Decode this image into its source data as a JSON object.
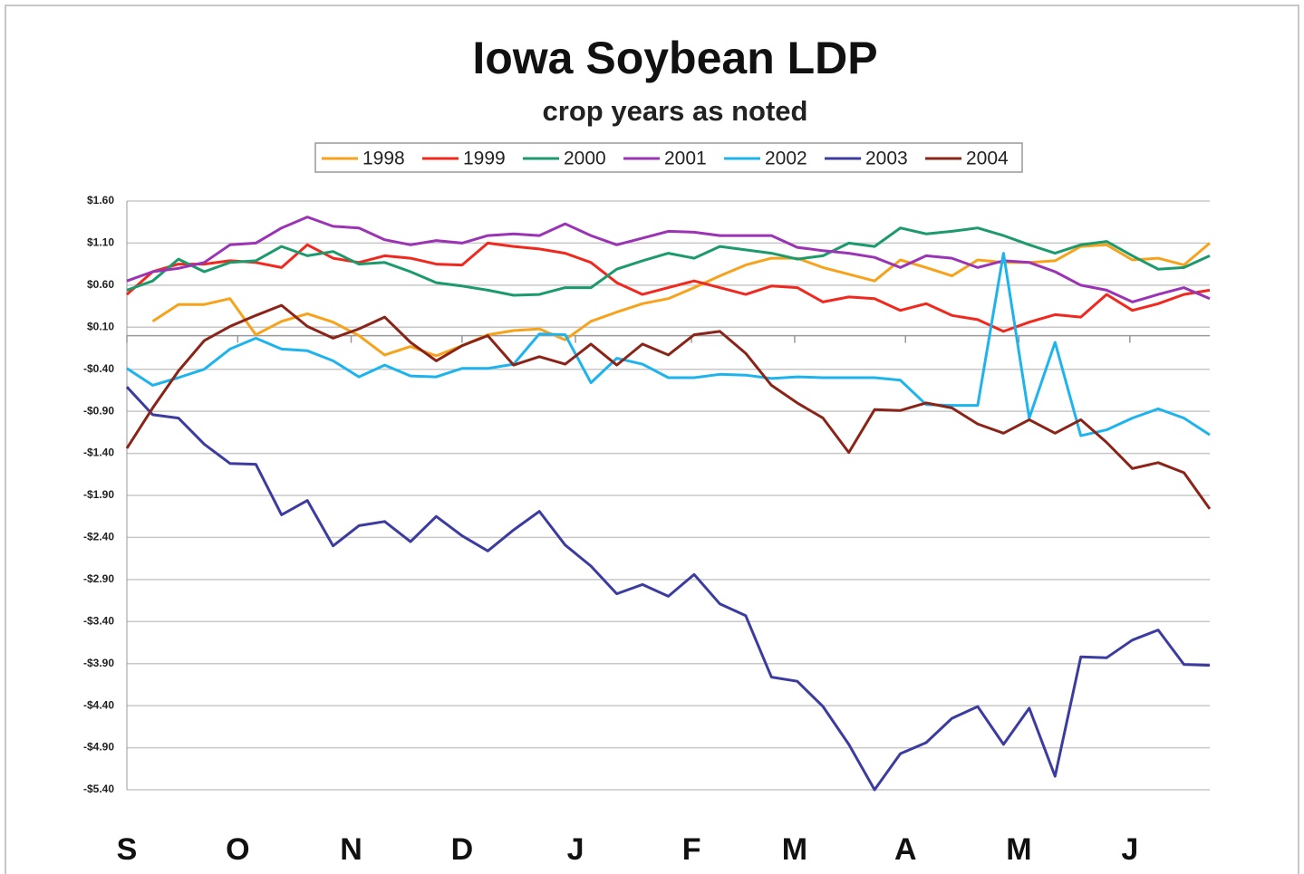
{
  "chart_data": {
    "type": "line",
    "title": "Iowa Soybean LDP",
    "subtitle": "crop years as noted",
    "x": [
      0,
      1,
      2,
      3,
      4,
      5,
      6,
      7,
      8,
      9,
      10,
      11,
      12,
      13,
      14,
      15,
      16,
      17,
      18,
      19,
      20,
      21,
      22,
      23,
      24,
      25,
      26,
      27,
      28,
      29,
      30,
      31,
      32,
      33,
      34,
      35,
      36,
      37,
      38,
      39,
      40,
      41,
      42
    ],
    "xlim": [
      0,
      42
    ],
    "xticks": [
      {
        "value": 0,
        "label": "S"
      },
      {
        "value": 4.3,
        "label": "O"
      },
      {
        "value": 8.7,
        "label": "N"
      },
      {
        "value": 13,
        "label": "D"
      },
      {
        "value": 17.4,
        "label": "J"
      },
      {
        "value": 21.9,
        "label": "F"
      },
      {
        "value": 25.9,
        "label": "M"
      },
      {
        "value": 30.2,
        "label": "A"
      },
      {
        "value": 34.6,
        "label": "M"
      },
      {
        "value": 38.9,
        "label": "J"
      }
    ],
    "ylim": [
      -5.4,
      1.6
    ],
    "yticks": [
      {
        "value": 1.6,
        "label": "$1.60"
      },
      {
        "value": 1.1,
        "label": "$1.10"
      },
      {
        "value": 0.6,
        "label": "$0.60"
      },
      {
        "value": 0.1,
        "label": "$0.10"
      },
      {
        "value": -0.4,
        "label": "-$0.40"
      },
      {
        "value": -0.9,
        "label": "-$0.90"
      },
      {
        "value": -1.4,
        "label": "-$1.40"
      },
      {
        "value": -1.9,
        "label": "-$1.90"
      },
      {
        "value": -2.4,
        "label": "-$2.40"
      },
      {
        "value": -2.9,
        "label": "-$2.90"
      },
      {
        "value": -3.4,
        "label": "-$3.40"
      },
      {
        "value": -3.9,
        "label": "-$3.90"
      },
      {
        "value": -4.4,
        "label": "-$4.40"
      },
      {
        "value": -4.9,
        "label": "-$4.90"
      },
      {
        "value": -5.4,
        "label": "-$5.40"
      }
    ],
    "grid": true,
    "legend": "top",
    "series": [
      {
        "name": "1998",
        "color": "#f7a21b",
        "values": [
          null,
          0.17,
          0.37,
          0.37,
          0.44,
          0.01,
          0.17,
          0.26,
          0.16,
          0.0,
          -0.23,
          -0.13,
          -0.24,
          -0.12,
          0.01,
          0.06,
          0.08,
          -0.05,
          0.17,
          0.28,
          0.38,
          0.44,
          0.57,
          0.71,
          0.84,
          0.92,
          0.92,
          0.81,
          0.73,
          0.65,
          0.9,
          0.81,
          0.71,
          0.9,
          0.87,
          0.87,
          0.89,
          1.06,
          1.08,
          0.9,
          0.92,
          0.84,
          1.1
        ]
      },
      {
        "name": "1999",
        "color": "#f0281e",
        "values": [
          0.49,
          0.76,
          0.85,
          0.85,
          0.89,
          0.87,
          0.81,
          1.08,
          0.92,
          0.87,
          0.95,
          0.92,
          0.85,
          0.84,
          1.1,
          1.06,
          1.03,
          0.98,
          0.87,
          0.63,
          0.49,
          0.57,
          0.65,
          0.57,
          0.49,
          0.59,
          0.57,
          0.4,
          0.46,
          0.44,
          0.3,
          0.38,
          0.24,
          0.19,
          0.05,
          0.16,
          0.25,
          0.22,
          0.49,
          0.3,
          0.38,
          0.49,
          0.54
        ]
      },
      {
        "name": "2000",
        "color": "#1b9a6c",
        "values": [
          0.54,
          0.65,
          0.91,
          0.76,
          0.87,
          0.89,
          1.06,
          0.95,
          1.0,
          0.85,
          0.87,
          0.76,
          0.63,
          0.59,
          0.54,
          0.48,
          0.49,
          0.57,
          0.57,
          0.79,
          0.89,
          0.98,
          0.92,
          1.06,
          1.02,
          0.98,
          0.91,
          0.95,
          1.1,
          1.06,
          1.28,
          1.21,
          1.24,
          1.28,
          1.19,
          1.08,
          0.98,
          1.08,
          1.12,
          0.95,
          0.79,
          0.81,
          0.95
        ]
      },
      {
        "name": "2001",
        "color": "#9b33b5",
        "values": [
          0.65,
          0.76,
          0.8,
          0.87,
          1.08,
          1.1,
          1.28,
          1.41,
          1.3,
          1.28,
          1.14,
          1.08,
          1.13,
          1.1,
          1.19,
          1.21,
          1.19,
          1.33,
          1.19,
          1.08,
          1.16,
          1.24,
          1.23,
          1.19,
          1.19,
          1.19,
          1.05,
          1.01,
          0.98,
          0.93,
          0.81,
          0.95,
          0.92,
          0.81,
          0.89,
          0.87,
          0.76,
          0.6,
          0.54,
          0.4,
          0.49,
          0.57,
          0.44
        ]
      },
      {
        "name": "2002",
        "color": "#1db4ee",
        "values": [
          -0.39,
          -0.59,
          -0.5,
          -0.4,
          -0.16,
          -0.03,
          -0.16,
          -0.18,
          -0.3,
          -0.49,
          -0.35,
          -0.48,
          -0.49,
          -0.39,
          -0.39,
          -0.34,
          0.02,
          0.01,
          -0.56,
          -0.27,
          -0.34,
          -0.5,
          -0.5,
          -0.46,
          -0.47,
          -0.51,
          -0.49,
          -0.5,
          -0.5,
          -0.5,
          -0.53,
          -0.82,
          -0.83,
          -0.83,
          0.98,
          -0.98,
          -0.08,
          -1.19,
          -1.12,
          -0.98,
          -0.87,
          -0.98,
          -1.18
        ]
      },
      {
        "name": "2003",
        "color": "#3c3ca0",
        "values": [
          -0.61,
          -0.94,
          -0.98,
          -1.29,
          -1.52,
          -1.53,
          -2.13,
          -1.96,
          -2.5,
          -2.26,
          -2.21,
          -2.45,
          -2.15,
          -2.38,
          -2.56,
          -2.31,
          -2.09,
          -2.49,
          -2.74,
          -3.07,
          -2.96,
          -3.1,
          -2.84,
          -3.19,
          -3.33,
          -4.06,
          -4.11,
          -4.41,
          -4.86,
          -5.4,
          -4.97,
          -4.84,
          -4.55,
          -4.41,
          -4.86,
          -4.43,
          -5.24,
          -3.82,
          -3.83,
          -3.62,
          -3.5,
          -3.91,
          -3.92
        ]
      },
      {
        "name": "2004",
        "color": "#8b2418",
        "values": [
          -1.34,
          -0.86,
          -0.42,
          -0.06,
          0.11,
          0.24,
          0.36,
          0.11,
          -0.03,
          0.08,
          0.22,
          -0.08,
          -0.3,
          -0.12,
          0.0,
          -0.35,
          -0.25,
          -0.34,
          -0.1,
          -0.35,
          -0.1,
          -0.23,
          0.01,
          0.05,
          -0.21,
          -0.59,
          -0.8,
          -0.98,
          -1.39,
          -0.88,
          -0.89,
          -0.8,
          -0.86,
          -1.05,
          -1.16,
          -1.0,
          -1.16,
          -1.0,
          -1.27,
          -1.58,
          -1.51,
          -1.63,
          -2.06
        ]
      }
    ]
  }
}
